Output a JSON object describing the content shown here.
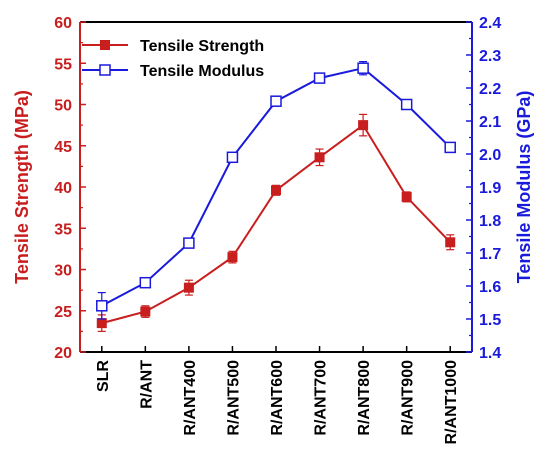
{
  "colors": {
    "strength": "#c81e1e",
    "modulus": "#1a1adc",
    "left_axis": "#c81e1e",
    "right_axis": "#1a1adc",
    "frame": "#000000"
  },
  "chart_data": {
    "type": "line",
    "categories": [
      "SLR",
      "R/ANT",
      "R/ANT400",
      "R/ANT500",
      "R/ANT600",
      "R/ANT700",
      "R/ANT800",
      "R/ANT900",
      "R/ANT1000"
    ],
    "ylabel_left": "Tensile Strength (MPa)",
    "ylabel_right": "Tensile Modulus (GPa)",
    "ylim_left": [
      20,
      60
    ],
    "ylim_right": [
      1.4,
      2.4
    ],
    "yticks_left": [
      "20",
      "25",
      "30",
      "35",
      "40",
      "45",
      "50",
      "55",
      "60"
    ],
    "yticks_right": [
      "1.4",
      "1.5",
      "1.6",
      "1.7",
      "1.8",
      "1.9",
      "2.0",
      "2.1",
      "2.2",
      "2.3",
      "2.4"
    ],
    "legend_position": "top-left",
    "series": [
      {
        "name": "Tensile Strength",
        "axis": "left",
        "marker": "filled-square",
        "values": [
          23.5,
          24.9,
          27.8,
          31.5,
          39.6,
          43.6,
          47.5,
          38.8,
          33.3
        ],
        "errors": [
          1.0,
          0.7,
          0.9,
          0.7,
          0.6,
          1.0,
          1.3,
          0.6,
          0.9
        ]
      },
      {
        "name": "Tensile Modulus",
        "axis": "right",
        "marker": "open-square",
        "values": [
          1.54,
          1.61,
          1.73,
          1.99,
          2.16,
          2.23,
          2.26,
          2.15,
          2.02
        ],
        "errors": [
          0.04,
          0.01,
          0.01,
          0.01,
          0.01,
          0.01,
          0.02,
          0.01,
          0.01
        ]
      }
    ]
  }
}
